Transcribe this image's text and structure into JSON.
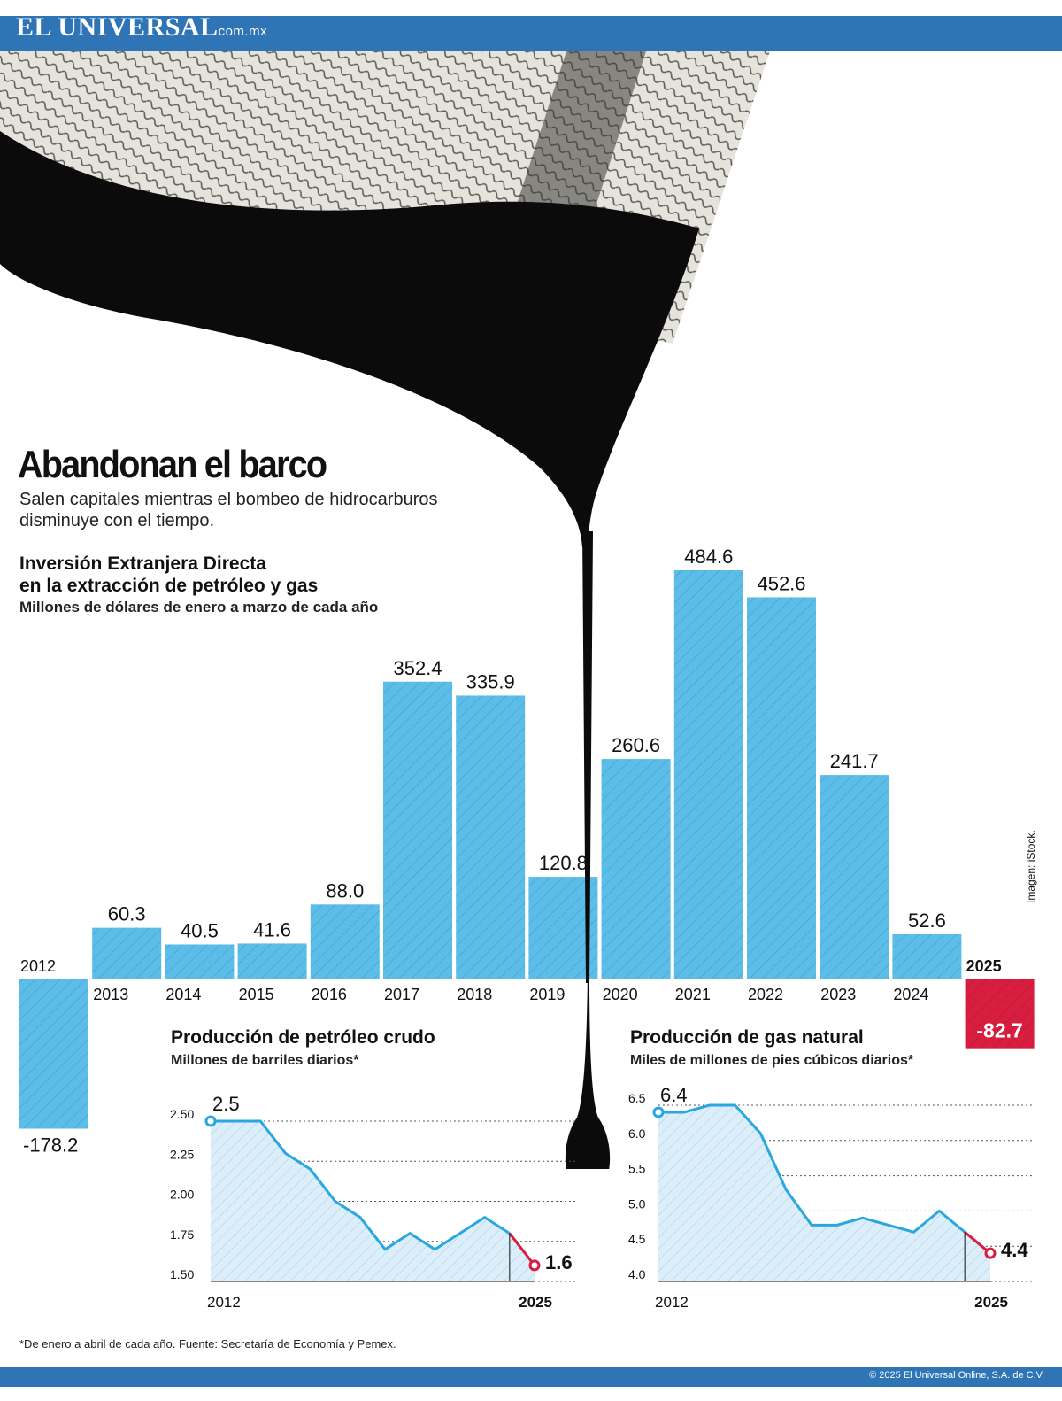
{
  "header": {
    "brand": "EL UNIVERSAL",
    "domain": "com.mx"
  },
  "headline": {
    "title": "Abandonan el barco",
    "subtitle": "Salen capitales mientras el bombeo de hidrocarburos disminuye con el tiempo."
  },
  "image_credit": "Imagen: iStock.",
  "footnote": "*De enero a abril de cada año. Fuente: Secretaría de Economía y Pemex.",
  "copyright": "© 2025 El Universal Online, S.A. de C.V.",
  "colors": {
    "bar": "#5bbde8",
    "negative": "#d81e40",
    "line": "#29a8e0",
    "brand": "#2f75b5",
    "oil": "#0b0b0b"
  },
  "chart_data": [
    {
      "type": "bar",
      "title": "Inversión Extranjera Directa en la extracción de petróleo y gas",
      "title_lines": [
        "Inversión Extranjera Directa",
        "en la extracción de petróleo y gas"
      ],
      "subtitle": "Millones de dólares de enero a marzo de cada año",
      "categories": [
        "2012",
        "2013",
        "2014",
        "2015",
        "2016",
        "2017",
        "2018",
        "2019",
        "2020",
        "2021",
        "2022",
        "2023",
        "2024",
        "2025"
      ],
      "values": [
        -178.2,
        60.3,
        40.5,
        41.6,
        88.0,
        352.4,
        335.9,
        120.8,
        260.6,
        484.6,
        452.6,
        241.7,
        52.6,
        -82.7
      ],
      "value_labels": [
        "-178.2",
        "60.3",
        "40.5",
        "41.6",
        "88.0",
        "352.4",
        "335.9",
        "120.8",
        "260.6",
        "484.6",
        "452.6",
        "241.7",
        "52.6",
        "-82.7"
      ]
    },
    {
      "type": "area",
      "title": "Producción de petróleo crudo",
      "subtitle": "Millones de barriles diarios*",
      "x": [
        2012,
        2013,
        2014,
        2015,
        2016,
        2017,
        2018,
        2019,
        2020,
        2021,
        2022,
        2023,
        2024,
        2025
      ],
      "values": [
        2.5,
        2.5,
        2.5,
        2.3,
        2.2,
        2.0,
        1.9,
        1.7,
        1.8,
        1.7,
        1.8,
        1.9,
        1.8,
        1.6
      ],
      "yticks": [
        "2.50",
        "2.25",
        "2.00",
        "1.75",
        "1.50"
      ],
      "ylim": [
        1.5,
        2.5
      ],
      "xlabels": [
        "2012",
        "2025"
      ],
      "start_label": "2.5",
      "end_label": "1.6"
    },
    {
      "type": "area",
      "title": "Producción de gas natural",
      "subtitle": "Miles de millones de pies cúbicos diarios*",
      "x": [
        2012,
        2013,
        2014,
        2015,
        2016,
        2017,
        2018,
        2019,
        2020,
        2021,
        2022,
        2023,
        2024,
        2025
      ],
      "values": [
        6.4,
        6.4,
        6.5,
        6.5,
        6.1,
        5.3,
        4.8,
        4.8,
        4.9,
        4.8,
        4.7,
        5.0,
        4.7,
        4.4
      ],
      "yticks": [
        "6.5",
        "6.0",
        "5.5",
        "5.0",
        "4.5",
        "4.0"
      ],
      "ylim": [
        4.0,
        6.5
      ],
      "xlabels": [
        "2012",
        "2025"
      ],
      "start_label": "6.4",
      "end_label": "4.4"
    }
  ]
}
